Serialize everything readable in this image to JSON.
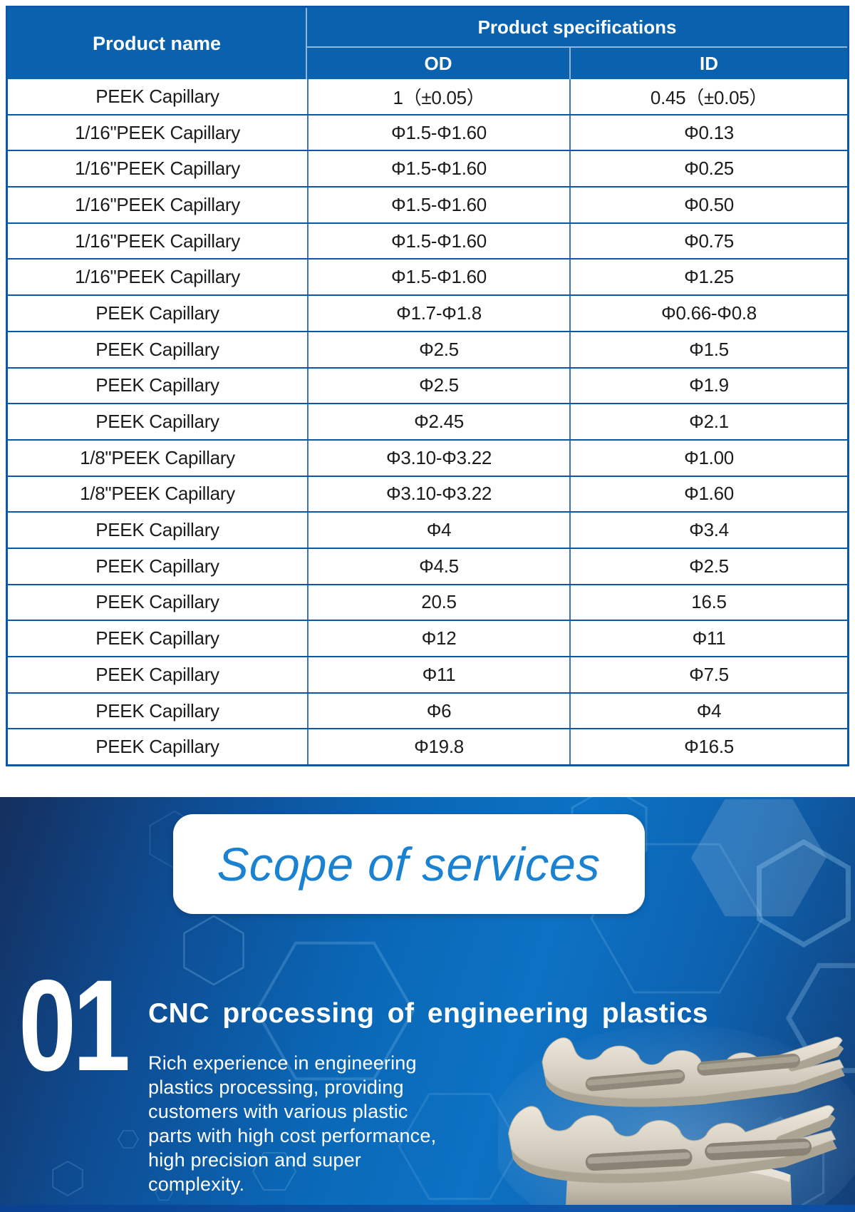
{
  "table": {
    "columns": {
      "name": "Product name",
      "spec_group": "Product specifications",
      "od": "OD",
      "id": "ID"
    },
    "rows": [
      {
        "name": "PEEK Capillary",
        "od": "1（±0.05）",
        "id": "0.45（±0.05）"
      },
      {
        "name": "1/16\"PEEK Capillary",
        "od": "Φ1.5-Φ1.60",
        "id": "Φ0.13"
      },
      {
        "name": "1/16\"PEEK Capillary",
        "od": "Φ1.5-Φ1.60",
        "id": "Φ0.25"
      },
      {
        "name": "1/16\"PEEK Capillary",
        "od": "Φ1.5-Φ1.60",
        "id": "Φ0.50"
      },
      {
        "name": "1/16\"PEEK Capillary",
        "od": "Φ1.5-Φ1.60",
        "id": "Φ0.75"
      },
      {
        "name": "1/16\"PEEK Capillary",
        "od": "Φ1.5-Φ1.60",
        "id": "Φ1.25"
      },
      {
        "name": "PEEK Capillary",
        "od": "Φ1.7-Φ1.8",
        "id": "Φ0.66-Φ0.8"
      },
      {
        "name": "PEEK Capillary",
        "od": "Φ2.5",
        "id": "Φ1.5"
      },
      {
        "name": "PEEK Capillary",
        "od": "Φ2.5",
        "id": "Φ1.9"
      },
      {
        "name": "PEEK Capillary",
        "od": "Φ2.45",
        "id": "Φ2.1"
      },
      {
        "name": "1/8\"PEEK Capillary",
        "od": "Φ3.10-Φ3.22",
        "id": "Φ1.00"
      },
      {
        "name": "1/8\"PEEK Capillary",
        "od": "Φ3.10-Φ3.22",
        "id": "Φ1.60"
      },
      {
        "name": "PEEK Capillary",
        "od": "Φ4",
        "id": "Φ3.4"
      },
      {
        "name": "PEEK Capillary",
        "od": "Φ4.5",
        "id": "Φ2.5"
      },
      {
        "name": "PEEK Capillary",
        "od": "20.5",
        "id": "16.5"
      },
      {
        "name": "PEEK Capillary",
        "od": "Φ12",
        "id": "Φ11"
      },
      {
        "name": "PEEK Capillary",
        "od": "Φ11",
        "id": "Φ7.5"
      },
      {
        "name": "PEEK Capillary",
        "od": "Φ6",
        "id": "Φ4"
      },
      {
        "name": "PEEK Capillary",
        "od": "Φ19.8",
        "id": "Φ16.5"
      }
    ]
  },
  "services": {
    "banner_title": "Scope of services",
    "item": {
      "number": "01",
      "title": "CNC processing of engineering plastics",
      "description_lines": [
        "Rich experience in engineering",
        "plastics processing, providing",
        "customers with various plastic",
        "parts with high cost performance,",
        "high precision and super",
        "complexity."
      ]
    }
  },
  "images": {
    "cnc_part_alt": "CNC machined beige engineering plastic part"
  },
  "colors": {
    "table_header_blue": "#0a61ae",
    "table_border_blue": "#0d57a7",
    "banner_text_blue": "#1b82d2",
    "section_dark_navy": "#142f5e",
    "section_bright_blue": "#0d72c4",
    "part_beige": "#d8d2c5"
  }
}
